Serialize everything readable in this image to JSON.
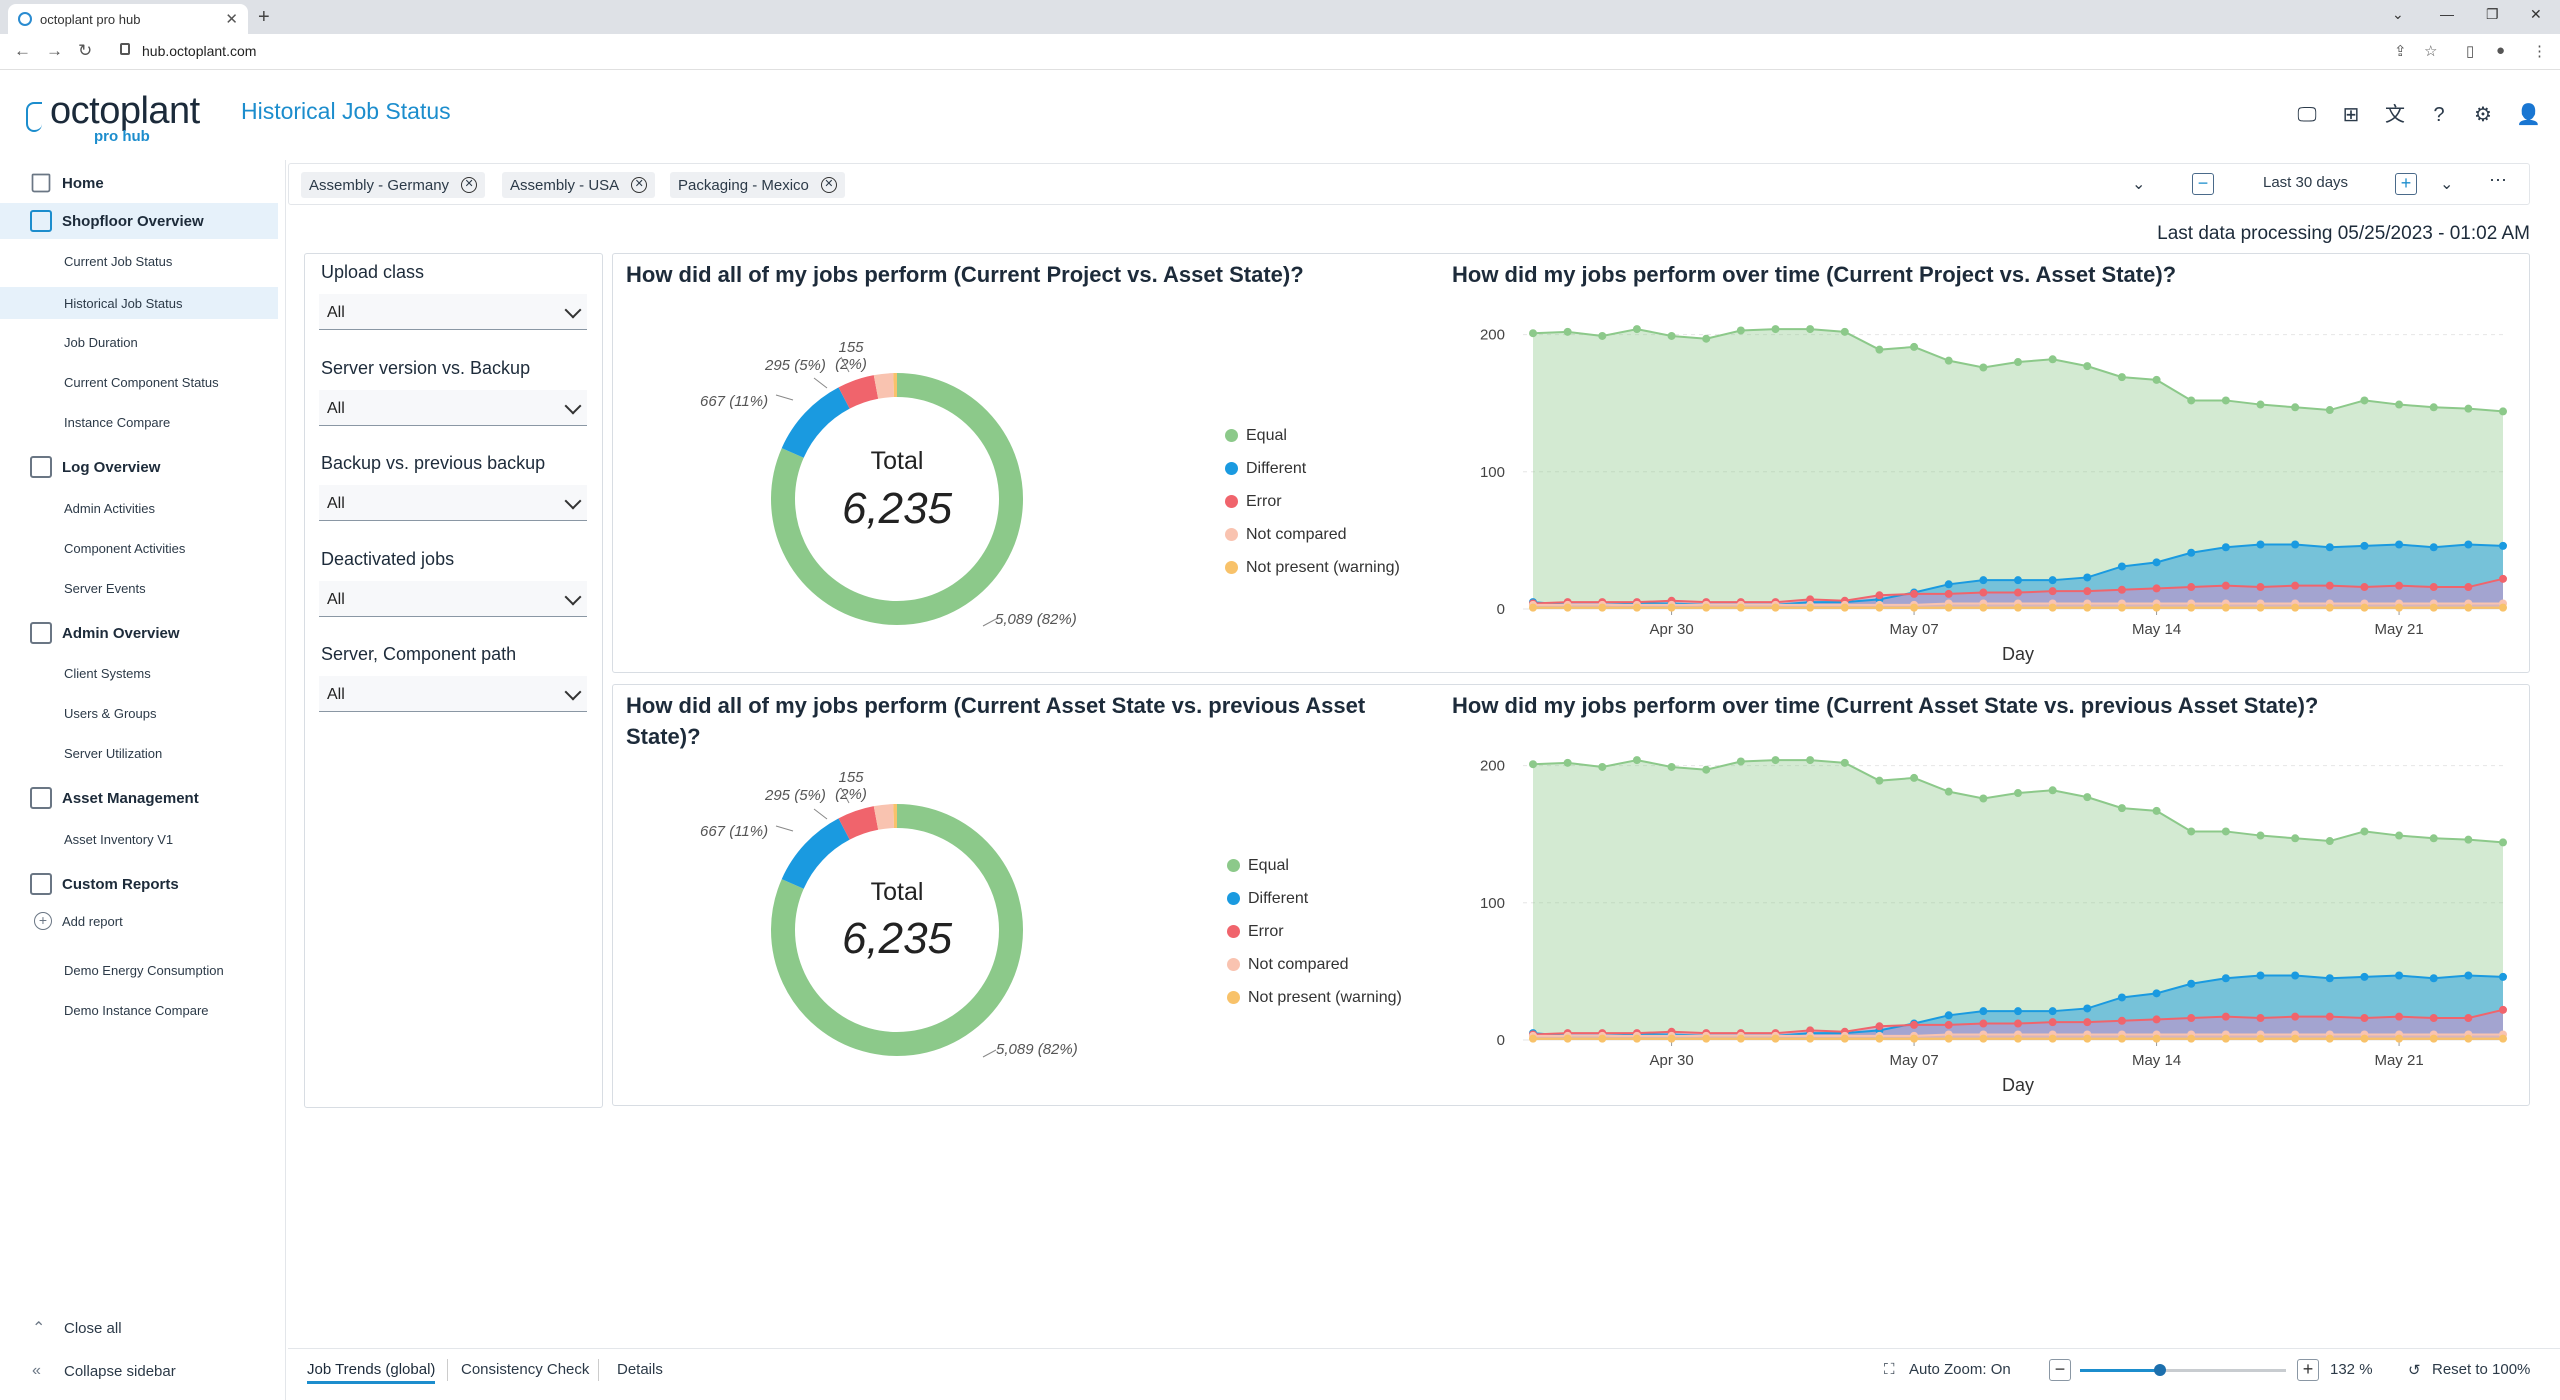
{
  "browser": {
    "tab_title": "octoplant pro hub",
    "url": "hub.octoplant.com"
  },
  "app": {
    "logo_main": "octoplant",
    "logo_sub": "pro hub",
    "page_title": "Historical Job Status"
  },
  "sidebar": {
    "home": "Home",
    "shopfloor": {
      "label": "Shopfloor Overview",
      "items": [
        "Current Job Status",
        "Historical Job Status",
        "Job Duration",
        "Current Component Status",
        "Instance Compare"
      ]
    },
    "log": {
      "label": "Log Overview",
      "items": [
        "Admin Activities",
        "Component Activities",
        "Server Events"
      ]
    },
    "admin": {
      "label": "Admin Overview",
      "items": [
        "Client Systems",
        "Users & Groups",
        "Server Utilization"
      ]
    },
    "asset": {
      "label": "Asset Management",
      "items": [
        "Asset Inventory V1"
      ]
    },
    "custom": {
      "label": "Custom Reports",
      "add": "Add report",
      "items": [
        "Demo Energy Consumption",
        "Demo Instance Compare"
      ]
    },
    "close_all": "Close all",
    "collapse": "Collapse sidebar"
  },
  "filterbar": {
    "chips": [
      "Assembly - Germany",
      "Assembly - USA",
      "Packaging - Mexico"
    ],
    "range": "Last 30 days"
  },
  "last_processing": "Last data processing 05/25/2023 - 01:02 AM",
  "filters": [
    {
      "label": "Upload class",
      "value": "All"
    },
    {
      "label": "Server version vs. Backup",
      "value": "All"
    },
    {
      "label": "Backup vs. previous backup",
      "value": "All"
    },
    {
      "label": "Deactivated jobs",
      "value": "All"
    },
    {
      "label": "Server, Component path",
      "value": "All"
    }
  ],
  "colors": {
    "Equal": "#8cc98a",
    "Different": "#1a9ae0",
    "Error": "#f0646c",
    "Not compared": "#f9c3b0",
    "Not present (warning)": "#f8c26a",
    "accent": "#1c8dcd"
  },
  "panels": [
    {
      "donut_title": "How did all of my jobs perform (Current Project vs. Asset State)?",
      "line_title": "How did my jobs perform over time (Current Project vs. Asset State)?"
    },
    {
      "donut_title": "How did all of my jobs perform (Current Asset State vs. previous Asset State)?",
      "line_title": "How did my jobs perform over time (Current Asset State vs. previous Asset State)?"
    }
  ],
  "chart_data": [
    {
      "type": "pie",
      "title": "How did all of my jobs perform (Current Project vs. Asset State)?",
      "center_label": "Total",
      "center_value": "6,235",
      "slices": [
        {
          "name": "Equal",
          "value": 5089,
          "label": "5,089 (82%)"
        },
        {
          "name": "Different",
          "value": 667,
          "label": "667 (11%)"
        },
        {
          "name": "Error",
          "value": 295,
          "label": "295 (5%)"
        },
        {
          "name": "Not compared",
          "value": 155,
          "label": "155 (2%)"
        },
        {
          "name": "Not present (warning)",
          "value": 29
        }
      ],
      "legend": [
        "Equal",
        "Different",
        "Error",
        "Not compared",
        "Not present (warning)"
      ],
      "legend_position": "right"
    },
    {
      "type": "area",
      "title": "How did my jobs perform over time (Current Project vs. Asset State)?",
      "xlabel": "Day",
      "x_ticks": [
        "Apr 30",
        "May 07",
        "May 14",
        "May 21"
      ],
      "y_ticks": [
        0,
        100,
        200
      ],
      "ylim": [
        0,
        215
      ],
      "x": [
        "Apr 26",
        "Apr 27",
        "Apr 28",
        "Apr 29",
        "Apr 30",
        "May 01",
        "May 02",
        "May 03",
        "May 04",
        "May 05",
        "May 06",
        "May 07",
        "May 08",
        "May 09",
        "May 10",
        "May 11",
        "May 12",
        "May 13",
        "May 14",
        "May 15",
        "May 16",
        "May 17",
        "May 18",
        "May 19",
        "May 20",
        "May 21",
        "May 22",
        "May 23",
        "May 24"
      ],
      "series": [
        {
          "name": "Equal",
          "values": [
            201,
            202,
            199,
            204,
            199,
            197,
            203,
            204,
            204,
            202,
            189,
            191,
            181,
            176,
            180,
            182,
            177,
            169,
            167,
            152,
            152,
            149,
            147,
            145,
            152,
            149,
            147,
            146,
            144
          ]
        },
        {
          "name": "Different",
          "values": [
            5,
            3,
            3,
            4,
            4,
            3,
            3,
            3,
            5,
            5,
            7,
            12,
            18,
            21,
            21,
            21,
            23,
            31,
            34,
            41,
            45,
            47,
            47,
            45,
            46,
            47,
            45,
            47,
            46
          ]
        },
        {
          "name": "Error",
          "values": [
            4,
            5,
            5,
            5,
            6,
            5,
            5,
            5,
            7,
            6,
            10,
            11,
            11,
            12,
            12,
            13,
            13,
            14,
            15,
            16,
            17,
            16,
            17,
            17,
            16,
            17,
            16,
            16,
            22
          ]
        },
        {
          "name": "Not compared",
          "values": [
            3,
            3,
            3,
            3,
            3,
            3,
            3,
            3,
            3,
            3,
            3,
            3,
            4,
            4,
            4,
            4,
            4,
            4,
            4,
            4,
            4,
            4,
            4,
            4,
            4,
            4,
            4,
            4,
            4
          ]
        },
        {
          "name": "Not present (warning)",
          "values": [
            1,
            1,
            1,
            1,
            1,
            1,
            1,
            1,
            1,
            1,
            1,
            1,
            1,
            1,
            1,
            1,
            1,
            1,
            1,
            1,
            1,
            1,
            1,
            1,
            1,
            1,
            1,
            1,
            1
          ]
        }
      ]
    },
    {
      "type": "pie",
      "title": "How did all of my jobs perform (Current Asset State vs. previous Asset State)?",
      "center_label": "Total",
      "center_value": "6,235",
      "slices": [
        {
          "name": "Equal",
          "value": 5089,
          "label": "5,089 (82%)"
        },
        {
          "name": "Different",
          "value": 667,
          "label": "667 (11%)"
        },
        {
          "name": "Error",
          "value": 295,
          "label": "295 (5%)"
        },
        {
          "name": "Not compared",
          "value": 155,
          "label": "155 (2%)"
        },
        {
          "name": "Not present (warning)",
          "value": 29
        }
      ],
      "legend": [
        "Equal",
        "Different",
        "Error",
        "Not compared",
        "Not present (warning)"
      ],
      "legend_position": "right"
    },
    {
      "type": "area",
      "title": "How did my jobs perform over time (Current Asset State vs. previous Asset State)?",
      "xlabel": "Day",
      "x_ticks": [
        "Apr 30",
        "May 07",
        "May 14",
        "May 21"
      ],
      "y_ticks": [
        0,
        100,
        200
      ],
      "ylim": [
        0,
        215
      ],
      "x": [
        "Apr 26",
        "Apr 27",
        "Apr 28",
        "Apr 29",
        "Apr 30",
        "May 01",
        "May 02",
        "May 03",
        "May 04",
        "May 05",
        "May 06",
        "May 07",
        "May 08",
        "May 09",
        "May 10",
        "May 11",
        "May 12",
        "May 13",
        "May 14",
        "May 15",
        "May 16",
        "May 17",
        "May 18",
        "May 19",
        "May 20",
        "May 21",
        "May 22",
        "May 23",
        "May 24"
      ],
      "series": [
        {
          "name": "Equal",
          "values": [
            201,
            202,
            199,
            204,
            199,
            197,
            203,
            204,
            204,
            202,
            189,
            191,
            181,
            176,
            180,
            182,
            177,
            169,
            167,
            152,
            152,
            149,
            147,
            145,
            152,
            149,
            147,
            146,
            144
          ]
        },
        {
          "name": "Different",
          "values": [
            5,
            3,
            3,
            4,
            4,
            3,
            3,
            3,
            5,
            5,
            7,
            12,
            18,
            21,
            21,
            21,
            23,
            31,
            34,
            41,
            45,
            47,
            47,
            45,
            46,
            47,
            45,
            47,
            46
          ]
        },
        {
          "name": "Error",
          "values": [
            4,
            5,
            5,
            5,
            6,
            5,
            5,
            5,
            7,
            6,
            10,
            11,
            11,
            12,
            12,
            13,
            13,
            14,
            15,
            16,
            17,
            16,
            17,
            17,
            16,
            17,
            16,
            16,
            22
          ]
        },
        {
          "name": "Not compared",
          "values": [
            3,
            3,
            3,
            3,
            3,
            3,
            3,
            3,
            3,
            3,
            3,
            3,
            4,
            4,
            4,
            4,
            4,
            4,
            4,
            4,
            4,
            4,
            4,
            4,
            4,
            4,
            4,
            4,
            4
          ]
        },
        {
          "name": "Not present (warning)",
          "values": [
            1,
            1,
            1,
            1,
            1,
            1,
            1,
            1,
            1,
            1,
            1,
            1,
            1,
            1,
            1,
            1,
            1,
            1,
            1,
            1,
            1,
            1,
            1,
            1,
            1,
            1,
            1,
            1,
            1
          ]
        }
      ]
    }
  ],
  "bottombar": {
    "tabs": [
      "Job Trends (global)",
      "Consistency Check",
      "Details"
    ],
    "auto_zoom": "Auto Zoom: On",
    "zoom": "132 %",
    "zoom_value": 132,
    "reset": "Reset to 100%"
  }
}
